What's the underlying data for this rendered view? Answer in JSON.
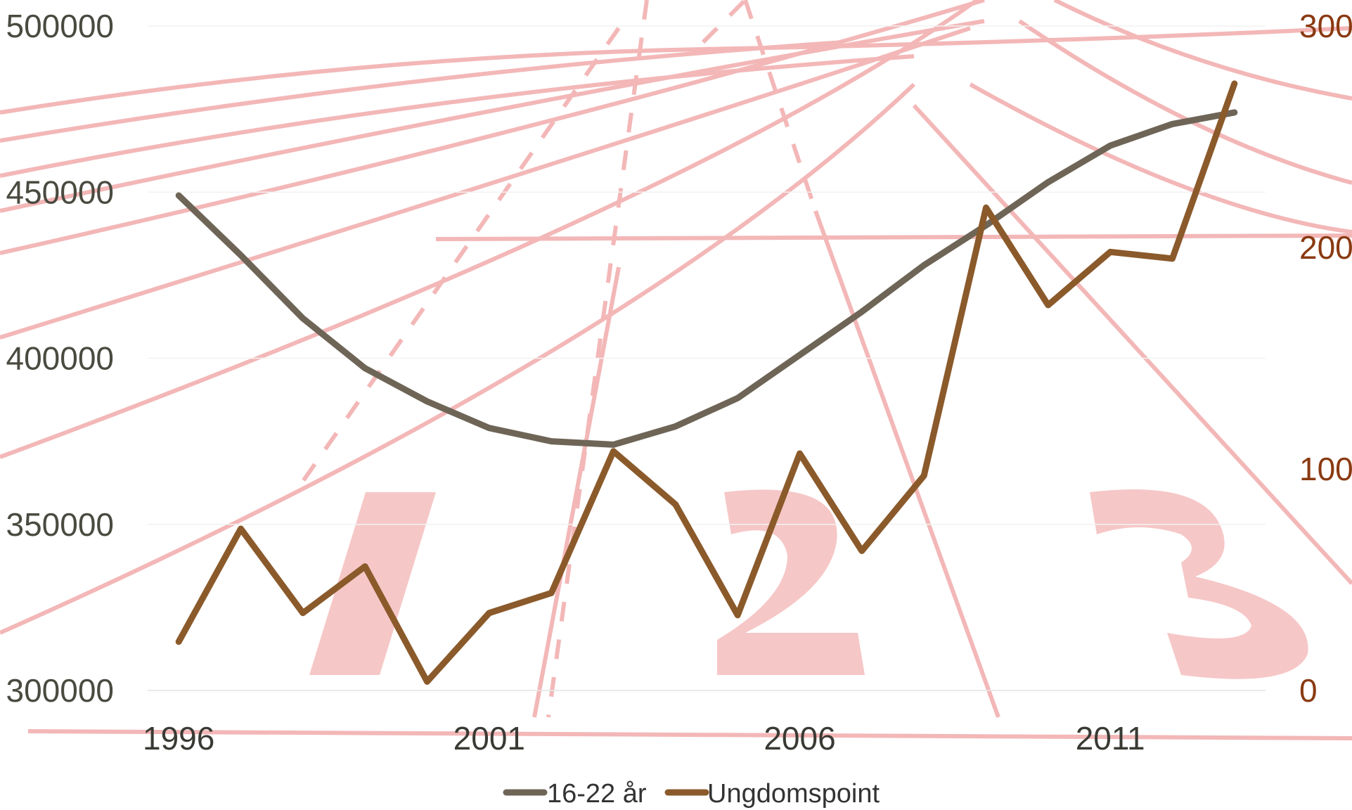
{
  "chart_data": {
    "type": "line",
    "title": "",
    "xlabel": "",
    "ylabel": "",
    "x": [
      1996,
      1997,
      1998,
      1999,
      2000,
      2001,
      2002,
      2003,
      2004,
      2005,
      2006,
      2007,
      2008,
      2009,
      2010,
      2011,
      2012,
      2013
    ],
    "x_ticks": [
      "1996",
      "2001",
      "2006",
      "2011"
    ],
    "xlim": [
      1995.5,
      2013.5
    ],
    "y_left": {
      "ticks": [
        "300000",
        "350000",
        "400000",
        "450000",
        "500000"
      ],
      "ylim": [
        300000,
        500000
      ]
    },
    "y_right": {
      "ticks": [
        "0",
        "100",
        "200",
        "300"
      ],
      "ylim": [
        0,
        300
      ]
    },
    "series": [
      {
        "name": "16-22 år",
        "axis": "left",
        "color": "#6e6557",
        "values": [
          449000,
          431000,
          412000,
          397000,
          387000,
          379000,
          375000,
          374000,
          379500,
          388000,
          401000,
          414000,
          428000,
          440000,
          453000,
          464000,
          470500,
          474000
        ]
      },
      {
        "name": "Ungdomspoint",
        "axis": "right",
        "color": "#8b5a2b",
        "values": [
          22,
          73,
          35,
          56,
          4,
          35,
          44,
          108,
          84,
          34,
          107,
          63,
          97,
          218,
          174,
          198,
          195,
          274
        ]
      }
    ],
    "legend": "bottom-center",
    "grid": true
  }
}
